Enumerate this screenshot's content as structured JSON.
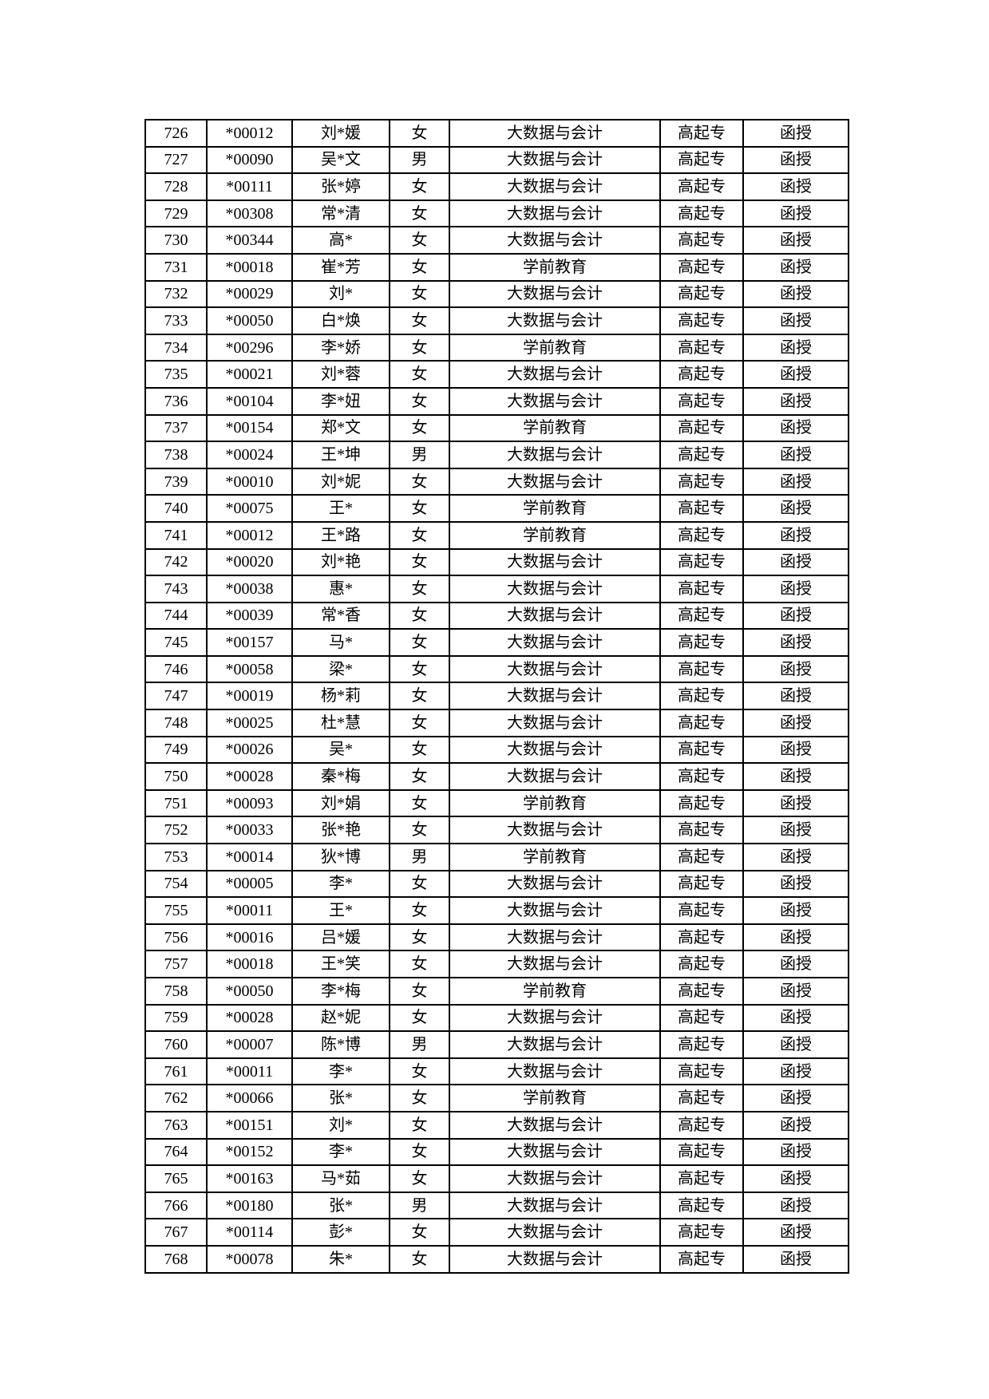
{
  "page": {
    "background_color": "#ffffff",
    "text_color": "#000000",
    "border_color": "#000000"
  },
  "table": {
    "column_keys": [
      "serial-number",
      "masked-id",
      "masked-name",
      "gender",
      "major",
      "level",
      "study-form"
    ],
    "rows": [
      [
        "726",
        "*00012",
        "刘*媛",
        "女",
        "大数据与会计",
        "高起专",
        "函授"
      ],
      [
        "727",
        "*00090",
        "吴*文",
        "男",
        "大数据与会计",
        "高起专",
        "函授"
      ],
      [
        "728",
        "*00111",
        "张*婷",
        "女",
        "大数据与会计",
        "高起专",
        "函授"
      ],
      [
        "729",
        "*00308",
        "常*清",
        "女",
        "大数据与会计",
        "高起专",
        "函授"
      ],
      [
        "730",
        "*00344",
        "高*",
        "女",
        "大数据与会计",
        "高起专",
        "函授"
      ],
      [
        "731",
        "*00018",
        "崔*芳",
        "女",
        "学前教育",
        "高起专",
        "函授"
      ],
      [
        "732",
        "*00029",
        "刘*",
        "女",
        "大数据与会计",
        "高起专",
        "函授"
      ],
      [
        "733",
        "*00050",
        "白*焕",
        "女",
        "大数据与会计",
        "高起专",
        "函授"
      ],
      [
        "734",
        "*00296",
        "李*娇",
        "女",
        "学前教育",
        "高起专",
        "函授"
      ],
      [
        "735",
        "*00021",
        "刘*蓉",
        "女",
        "大数据与会计",
        "高起专",
        "函授"
      ],
      [
        "736",
        "*00104",
        "李*妞",
        "女",
        "大数据与会计",
        "高起专",
        "函授"
      ],
      [
        "737",
        "*00154",
        "郑*文",
        "女",
        "学前教育",
        "高起专",
        "函授"
      ],
      [
        "738",
        "*00024",
        "王*坤",
        "男",
        "大数据与会计",
        "高起专",
        "函授"
      ],
      [
        "739",
        "*00010",
        "刘*妮",
        "女",
        "大数据与会计",
        "高起专",
        "函授"
      ],
      [
        "740",
        "*00075",
        "王*",
        "女",
        "学前教育",
        "高起专",
        "函授"
      ],
      [
        "741",
        "*00012",
        "王*路",
        "女",
        "学前教育",
        "高起专",
        "函授"
      ],
      [
        "742",
        "*00020",
        "刘*艳",
        "女",
        "大数据与会计",
        "高起专",
        "函授"
      ],
      [
        "743",
        "*00038",
        "惠*",
        "女",
        "大数据与会计",
        "高起专",
        "函授"
      ],
      [
        "744",
        "*00039",
        "常*香",
        "女",
        "大数据与会计",
        "高起专",
        "函授"
      ],
      [
        "745",
        "*00157",
        "马*",
        "女",
        "大数据与会计",
        "高起专",
        "函授"
      ],
      [
        "746",
        "*00058",
        "梁*",
        "女",
        "大数据与会计",
        "高起专",
        "函授"
      ],
      [
        "747",
        "*00019",
        "杨*莉",
        "女",
        "大数据与会计",
        "高起专",
        "函授"
      ],
      [
        "748",
        "*00025",
        "杜*慧",
        "女",
        "大数据与会计",
        "高起专",
        "函授"
      ],
      [
        "749",
        "*00026",
        "吴*",
        "女",
        "大数据与会计",
        "高起专",
        "函授"
      ],
      [
        "750",
        "*00028",
        "秦*梅",
        "女",
        "大数据与会计",
        "高起专",
        "函授"
      ],
      [
        "751",
        "*00093",
        "刘*娟",
        "女",
        "学前教育",
        "高起专",
        "函授"
      ],
      [
        "752",
        "*00033",
        "张*艳",
        "女",
        "大数据与会计",
        "高起专",
        "函授"
      ],
      [
        "753",
        "*00014",
        "狄*博",
        "男",
        "学前教育",
        "高起专",
        "函授"
      ],
      [
        "754",
        "*00005",
        "李*",
        "女",
        "大数据与会计",
        "高起专",
        "函授"
      ],
      [
        "755",
        "*00011",
        "王*",
        "女",
        "大数据与会计",
        "高起专",
        "函授"
      ],
      [
        "756",
        "*00016",
        "吕*媛",
        "女",
        "大数据与会计",
        "高起专",
        "函授"
      ],
      [
        "757",
        "*00018",
        "王*笑",
        "女",
        "大数据与会计",
        "高起专",
        "函授"
      ],
      [
        "758",
        "*00050",
        "李*梅",
        "女",
        "学前教育",
        "高起专",
        "函授"
      ],
      [
        "759",
        "*00028",
        "赵*妮",
        "女",
        "大数据与会计",
        "高起专",
        "函授"
      ],
      [
        "760",
        "*00007",
        "陈*博",
        "男",
        "大数据与会计",
        "高起专",
        "函授"
      ],
      [
        "761",
        "*00011",
        "李*",
        "女",
        "大数据与会计",
        "高起专",
        "函授"
      ],
      [
        "762",
        "*00066",
        "张*",
        "女",
        "学前教育",
        "高起专",
        "函授"
      ],
      [
        "763",
        "*00151",
        "刘*",
        "女",
        "大数据与会计",
        "高起专",
        "函授"
      ],
      [
        "764",
        "*00152",
        "李*",
        "女",
        "大数据与会计",
        "高起专",
        "函授"
      ],
      [
        "765",
        "*00163",
        "马*茹",
        "女",
        "大数据与会计",
        "高起专",
        "函授"
      ],
      [
        "766",
        "*00180",
        "张*",
        "男",
        "大数据与会计",
        "高起专",
        "函授"
      ],
      [
        "767",
        "*00114",
        "彭*",
        "女",
        "大数据与会计",
        "高起专",
        "函授"
      ],
      [
        "768",
        "*00078",
        "朱*",
        "女",
        "大数据与会计",
        "高起专",
        "函授"
      ]
    ]
  }
}
